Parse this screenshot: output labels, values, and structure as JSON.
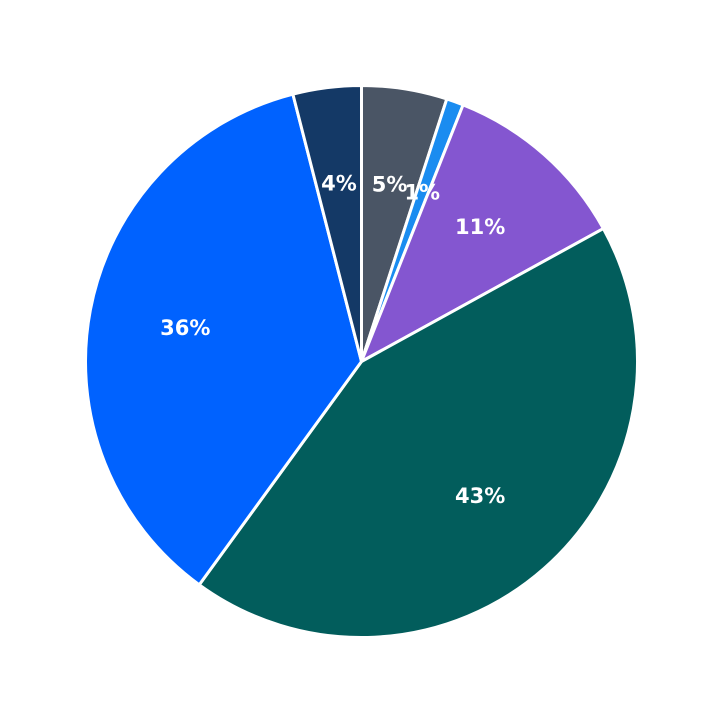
{
  "chart_data": {
    "type": "pie",
    "title": "",
    "start_angle_deg": 90,
    "direction": "clockwise",
    "slices": [
      {
        "label": "5%",
        "value": 5,
        "color": "#4a5565"
      },
      {
        "label": "1%",
        "value": 1,
        "color": "#1a8cf0"
      },
      {
        "label": "11%",
        "value": 11,
        "color": "#8456d0"
      },
      {
        "label": "43%",
        "value": 43,
        "color": "#025d5c"
      },
      {
        "label": "36%",
        "value": 36,
        "color": "#0062ff"
      },
      {
        "label": "4%",
        "value": 4,
        "color": "#143966"
      }
    ]
  }
}
